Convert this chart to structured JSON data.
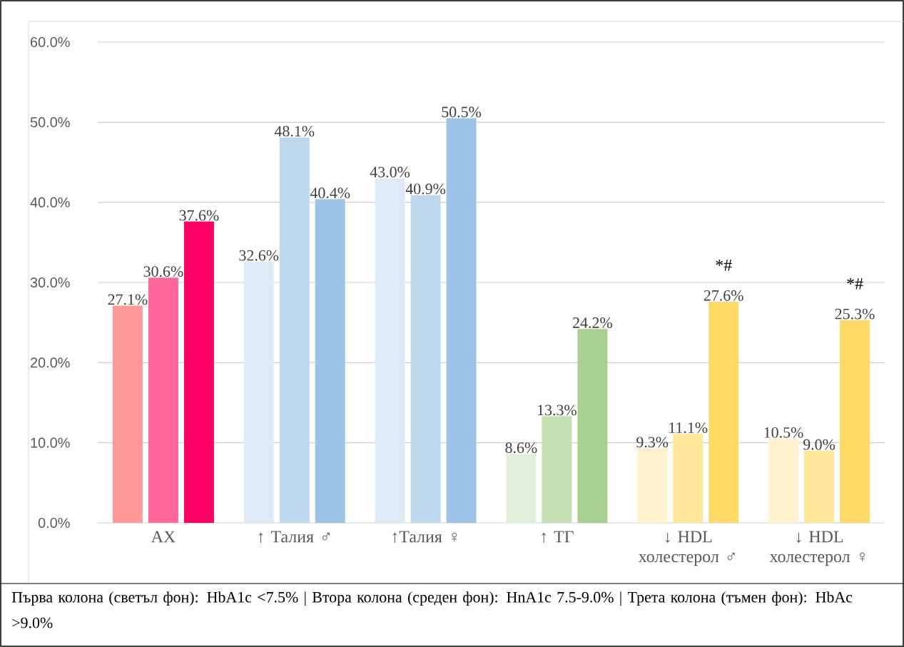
{
  "chart_data": {
    "type": "bar",
    "categories": [
      "АХ",
      "↑ Талия ♂",
      "↑Талия ♀",
      "↑ ТГ",
      "↓ HDL холестерол ♂",
      "↓ HDL холестерол ♀"
    ],
    "series": [
      {
        "colors": [
          "#ff9999",
          "#deeaf6",
          "#deeaf6",
          "#e2efda",
          "#fff2cc",
          "#fff2cc"
        ],
        "values": [
          27.1,
          32.6,
          43.0,
          8.6,
          9.3,
          10.5
        ],
        "value_labels": [
          "27.1%",
          "32.6%",
          "43.0%",
          "8.6%",
          "9.3%",
          "10.5%"
        ]
      },
      {
        "colors": [
          "#ff6699",
          "#bdd7ee",
          "#bdd7ee",
          "#c6e0b4",
          "#ffe699",
          "#ffe699"
        ],
        "values": [
          30.6,
          48.1,
          40.9,
          13.3,
          11.1,
          9.0
        ],
        "value_labels": [
          "30.6%",
          "48.1%",
          "40.9%",
          "13.3%",
          "11.1%",
          "9.0%"
        ]
      },
      {
        "colors": [
          "#ff0066",
          "#9dc3e6",
          "#9dc3e6",
          "#a9d08e",
          "#ffd966",
          "#ffd966"
        ],
        "values": [
          37.6,
          40.4,
          50.5,
          24.2,
          27.6,
          25.3
        ],
        "value_labels": [
          "37.6%",
          "40.4%",
          "50.5%",
          "24.2%",
          "27.6%",
          "25.3%"
        ]
      }
    ],
    "ylim": [
      0,
      60
    ],
    "yticks": [
      {
        "value": 0,
        "label": "0.0%"
      },
      {
        "value": 10,
        "label": "10.0%"
      },
      {
        "value": 20,
        "label": "20.0%"
      },
      {
        "value": 30,
        "label": "30.0%"
      },
      {
        "value": 40,
        "label": "40.0%"
      },
      {
        "value": 50,
        "label": "50.0%"
      },
      {
        "value": 60,
        "label": "60.0%"
      }
    ],
    "grid": "y",
    "annotations": [
      "*#",
      "*#",
      "Първа колона (светъл фон): HbA1c <7.5% | Втора колона (среден фон): HnA1c 7.5-9.0% | Трета колона (тъмен фон): HbAc >9.0%"
    ]
  }
}
